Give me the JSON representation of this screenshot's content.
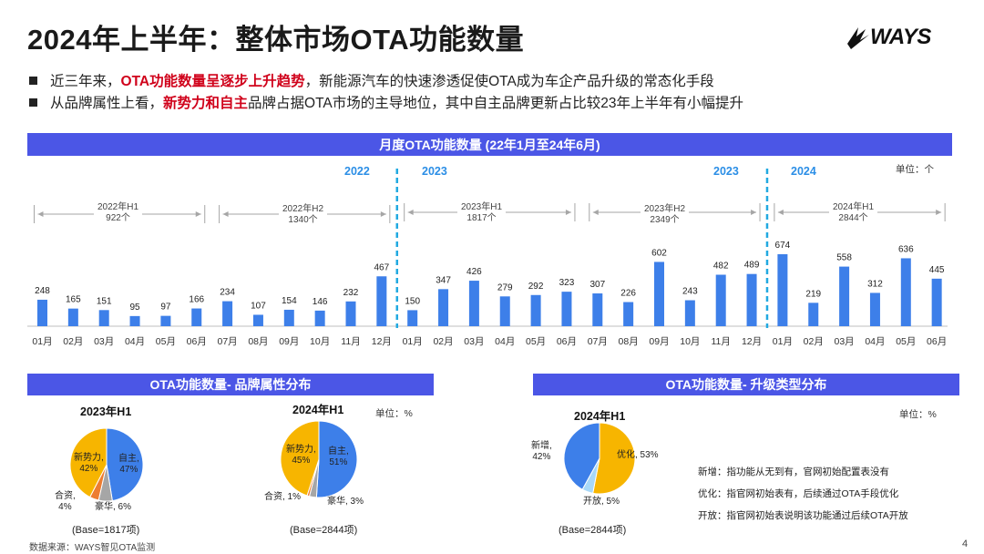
{
  "header": {
    "title": "2024年上半年：整体市场OTA功能数量",
    "logo_text": "WAYS"
  },
  "bullets": [
    {
      "pre": "近三年来，",
      "highlight": "OTA功能数量呈逐步上升趋势",
      "post": "，新能源汽车的快速渗透促使OTA成为车企产品升级的常态化手段"
    },
    {
      "pre": "从品牌属性上看，",
      "highlight": "新势力和自主",
      "post": "品牌占据OTA市场的主导地位，其中自主品牌更新占比较23年上半年有小幅提升"
    }
  ],
  "monthly": {
    "band_title": "月度OTA功能数量 (22年1月至24年6月)",
    "unit_label": "单位：个",
    "year_labels": [
      "2022",
      "2023",
      "2023",
      "2024"
    ],
    "half_labels": [
      {
        "line1": "2022年H1",
        "line2": "922个"
      },
      {
        "line1": "2022年H2",
        "line2": "1340个"
      },
      {
        "line1": "2023年H1",
        "line2": "1817个"
      },
      {
        "line1": "2023年H2",
        "line2": "2349个"
      },
      {
        "line1": "2024年H1",
        "line2": "2844个"
      }
    ]
  },
  "chart_data": [
    {
      "type": "bar",
      "title": "月度OTA功能数量 (22年1月至24年6月)",
      "categories": [
        "01月",
        "02月",
        "03月",
        "04月",
        "05月",
        "06月",
        "07月",
        "08月",
        "09月",
        "10月",
        "11月",
        "12月",
        "01月",
        "02月",
        "03月",
        "04月",
        "05月",
        "06月",
        "07月",
        "08月",
        "09月",
        "10月",
        "11月",
        "12月",
        "01月",
        "02月",
        "03月",
        "04月",
        "05月",
        "06月"
      ],
      "values": [
        248,
        165,
        151,
        95,
        97,
        166,
        234,
        107,
        154,
        146,
        232,
        467,
        150,
        347,
        426,
        279,
        292,
        323,
        307,
        226,
        602,
        243,
        482,
        489,
        674,
        219,
        558,
        312,
        636,
        445
      ],
      "unit": "个",
      "ylim": [
        0,
        700
      ],
      "color": "#3d7fe9"
    },
    {
      "type": "pie",
      "title": "2023年H1",
      "labels": [
        "自主",
        "豪华",
        "合资",
        "新势力"
      ],
      "label_text": [
        "自主,",
        "豪华, 6%",
        "合资,",
        "新势力,"
      ],
      "label_text2": [
        "47%",
        "",
        "4%",
        "42%"
      ],
      "values": [
        47,
        6,
        4,
        42
      ],
      "colors": [
        "#3d7fe9",
        "#a6a6a6",
        "#ed7d31",
        "#f7b500"
      ],
      "base": "(Base=1817项)",
      "unit": "单位：%"
    },
    {
      "type": "pie",
      "title": "2024年H1",
      "labels": [
        "自主",
        "豪华",
        "合资",
        "新势力"
      ],
      "label_text": [
        "自主,",
        "豪华, 3%",
        "合资, 1%",
        "新势力,"
      ],
      "label_text2": [
        "51%",
        "",
        "",
        "45%"
      ],
      "values": [
        51,
        3,
        1,
        45
      ],
      "colors": [
        "#3d7fe9",
        "#a6a6a6",
        "#ed7d31",
        "#f7b500"
      ],
      "base": "(Base=2844项)"
    },
    {
      "type": "pie",
      "title": "2024年H1",
      "labels": [
        "优化",
        "开放",
        "新增"
      ],
      "label_text": [
        "优化, 53%",
        "开放, 5%",
        "新增,"
      ],
      "label_text2": [
        "",
        "",
        "42%"
      ],
      "values": [
        53,
        5,
        42
      ],
      "colors": [
        "#f7b500",
        "#a8d8f8",
        "#3d7fe9"
      ],
      "base": "(Base=2844项)",
      "unit": "单位：%"
    }
  ],
  "brand_section": {
    "band_title": "OTA功能数量- 品牌属性分布",
    "unit_label": "单位：%"
  },
  "upgrade_section": {
    "band_title": "OTA功能数量- 升级类型分布",
    "unit_label": "单位：%",
    "definitions": [
      "新增：指功能从无到有，官网初始配置表没有",
      "优化：指官网初始表有，后续通过OTA手段优化",
      "开放：指官网初始表说明该功能通过后续OTA开放"
    ]
  },
  "footer": {
    "source": "数据来源：WAYS智见OTA监测",
    "page": "4"
  }
}
